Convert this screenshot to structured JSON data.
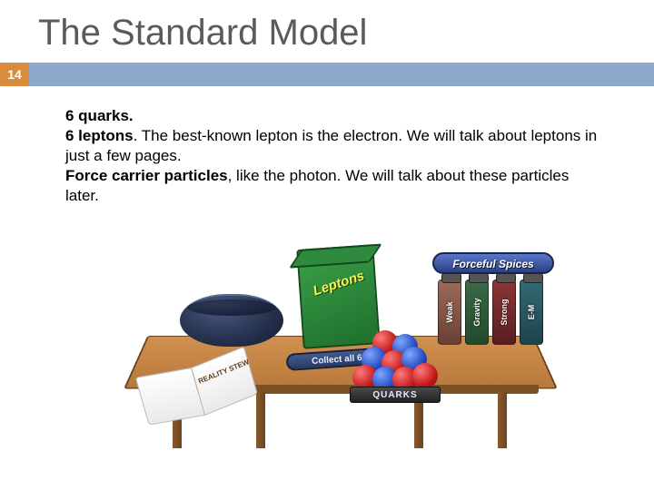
{
  "title": "The Standard Model",
  "page_number": "14",
  "colors": {
    "bar": "#8ea9c9",
    "page_num_bg": "#d98d3c",
    "title_text": "#5a5a5a"
  },
  "body": {
    "b1": "6 quarks.",
    "b2": "6 leptons",
    "t2": ". The best-known lepton is the electron. We will talk about leptons in just a few pages.",
    "b3": "Force carrier particles",
    "t3": ", like the photon. We will talk about these particles later."
  },
  "illustration": {
    "book_label": "REALITY\nSTEW",
    "lepton_title": "Leptons",
    "collect_label": "Collect all 6!",
    "quark_label": "QUARKS",
    "spice_banner": "Forceful Spices",
    "jars": {
      "j1": "Weak",
      "j2": "Gravity",
      "j3": "Strong",
      "j4": "E-M"
    }
  }
}
